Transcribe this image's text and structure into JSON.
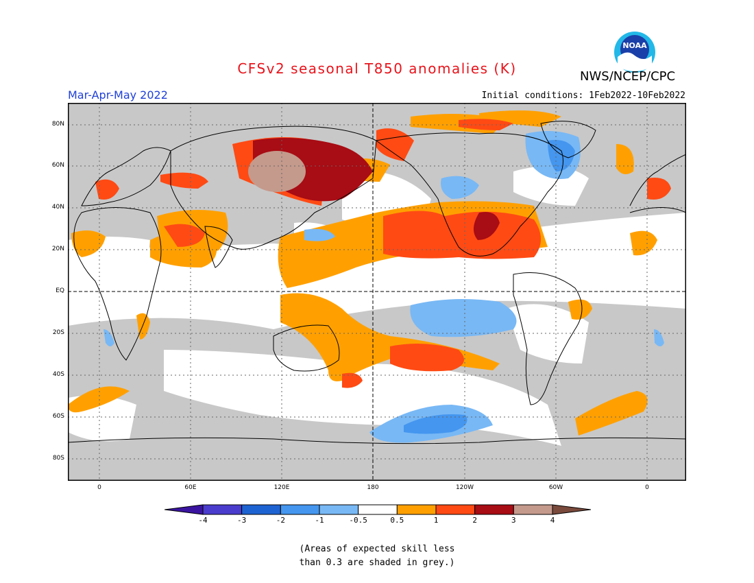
{
  "title": "CFSv2 seasonal T850 anomalies (K)",
  "organization": "NWS/NCEP/CPC",
  "logo_text": "NOAA",
  "season": "Mar-Apr-May 2022",
  "initial_conditions": "Initial conditions: 1Feb2022-10Feb2022",
  "lat_labels": [
    "80N",
    "60N",
    "40N",
    "20N",
    "EQ",
    "20S",
    "40S",
    "60S",
    "80S"
  ],
  "lon_labels": [
    "0",
    "60E",
    "120E",
    "180",
    "120W",
    "60W",
    "0"
  ],
  "colorbar": {
    "levels": [
      "-4",
      "-3",
      "-2",
      "-1",
      "-0.5",
      "0.5",
      "1",
      "2",
      "3",
      "4"
    ],
    "colors": [
      "#3a14a0",
      "#4a3ccc",
      "#1e63d2",
      "#4496ef",
      "#78b8f5",
      "#ffffff",
      "#ffa000",
      "#ff4a14",
      "#a80c14",
      "#c49a8c",
      "#7a4a3c"
    ]
  },
  "note_line1": "(Areas of expected skill less",
  "note_line2": "than 0.3 are shaded in grey.)",
  "colors": {
    "title": "#e8141c",
    "season": "#1e3fd8",
    "grey": "#c8c8c8"
  }
}
